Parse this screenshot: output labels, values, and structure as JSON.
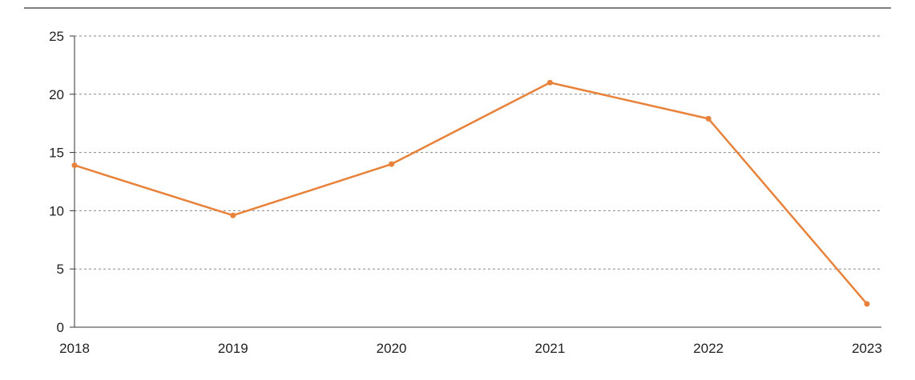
{
  "chart_data": {
    "type": "line",
    "title": "",
    "xlabel": "",
    "ylabel": "",
    "categories": [
      "2018",
      "2019",
      "2020",
      "2021",
      "2022",
      "2023"
    ],
    "series": [
      {
        "values": [
          13.9,
          9.6,
          14.0,
          21.0,
          17.9,
          2.0
        ]
      }
    ],
    "ylim": [
      0,
      25
    ],
    "yticks": [
      "0",
      "5",
      "10",
      "15",
      "20",
      "25"
    ],
    "grid": "horizontal-dashed",
    "legend": "none",
    "colors": {
      "line": "#e8823a",
      "grid": "#8a8a8a",
      "axis": "#333333",
      "top_rule": "#333333"
    }
  }
}
